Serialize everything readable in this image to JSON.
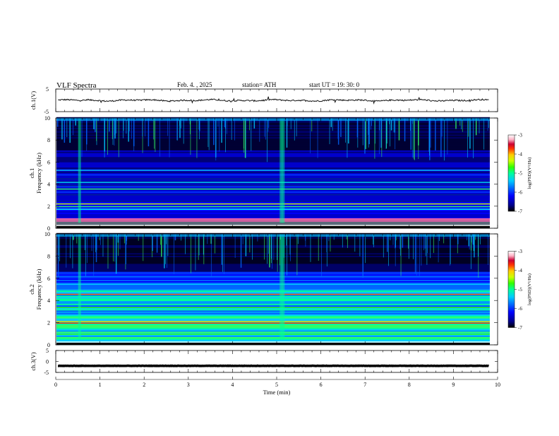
{
  "header": {
    "title": "VLF  Spectra",
    "date": "Feb. 4.  , 2025",
    "station": "station= ATH",
    "start": "start  UT  =    19: 30: 0"
  },
  "chart_data": {
    "type": "heatmap",
    "title": "VLF  Spectra",
    "xlabel": "Time  (min)",
    "xlim": [
      0,
      10
    ],
    "x_ticks": [
      "0",
      "1",
      "2",
      "3",
      "4",
      "5",
      "6",
      "7",
      "8",
      "9",
      "10"
    ],
    "panels": [
      {
        "kind": "waveform",
        "ylabel": "ch.1(V)",
        "ylim": [
          -5,
          5
        ],
        "y_ticks": [
          "5",
          "-5"
        ],
        "baseline": 0,
        "line_color": "#111111"
      },
      {
        "kind": "spectrogram",
        "ylabel_top": "ch.1",
        "ylabel": "Frequency  (kHz)",
        "ylim": [
          0,
          10
        ],
        "y_ticks": [
          "0",
          "2",
          "4",
          "6",
          "8",
          "10"
        ],
        "colorbar": {
          "label": "log(PSD)(V²/Hz)",
          "range": [
            -7,
            -3
          ],
          "ticks": [
            "-3",
            "-4",
            "-5",
            "-6",
            "-7"
          ]
        }
      },
      {
        "kind": "spectrogram",
        "ylabel_top": "ch.2",
        "ylabel": "Frequency  (kHz)",
        "ylim": [
          0,
          10
        ],
        "y_ticks": [
          "0",
          "2",
          "4",
          "6",
          "8",
          "10"
        ],
        "colorbar": {
          "label": "log(PSD)(V²/Hz)",
          "range": [
            -7,
            -3
          ],
          "ticks": [
            "-3",
            "-4",
            "-5",
            "-6",
            "-7"
          ]
        }
      },
      {
        "kind": "waveform",
        "ylabel": "ch.3(V)",
        "ylim": [
          -5,
          5
        ],
        "y_ticks": [
          "5",
          "0",
          "-5"
        ],
        "baseline": -2,
        "line_color": "#000000"
      }
    ],
    "colormap": [
      "#000000",
      "#00008b",
      "#0000ff",
      "#0066ff",
      "#00ccff",
      "#00ff99",
      "#33ff00",
      "#ccff00",
      "#ffcc00",
      "#ff3300",
      "#cc0033",
      "#ffb3c6",
      "#ffffff"
    ],
    "series": [
      {
        "name": "ch.1(V)",
        "values": [
          0,
          0.1,
          -0.2,
          0.2,
          -0.1,
          0.3,
          -0.1,
          0.2,
          -0.2,
          0.1,
          0
        ]
      },
      {
        "name": "ch.3(V)",
        "values": [
          -2,
          -2,
          -2,
          -2,
          -2,
          -2,
          -2,
          -2,
          -2,
          -2,
          -2
        ]
      }
    ]
  }
}
